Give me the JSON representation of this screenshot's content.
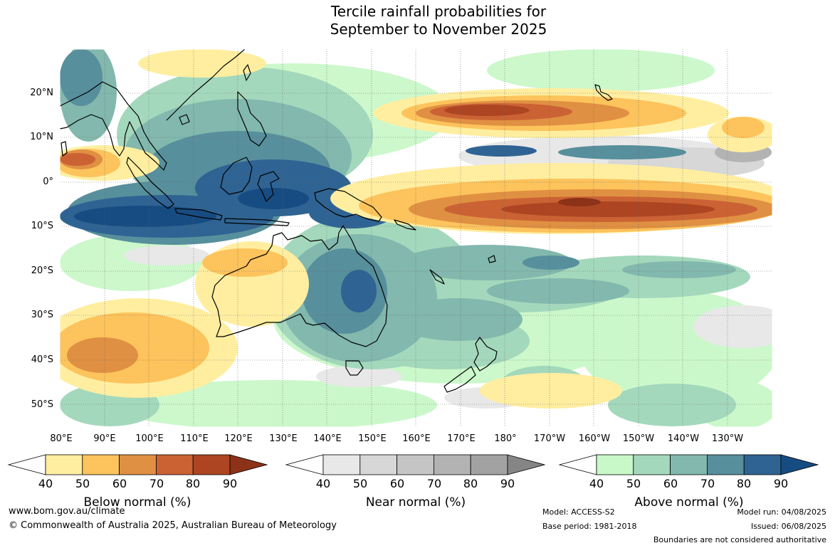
{
  "title": {
    "line1": "Tercile rainfall probabilities for",
    "line2": "September to November 2025"
  },
  "map": {
    "lat_labels": [
      "20°N",
      "10°N",
      "0°",
      "10°S",
      "20°S",
      "30°S",
      "40°S",
      "50°S"
    ],
    "lon_labels": [
      "80°E",
      "90°E",
      "100°E",
      "110°E",
      "120°E",
      "130°E",
      "140°E",
      "150°E",
      "160°E",
      "170°E",
      "180°",
      "170°W",
      "160°W",
      "150°W",
      "140°W",
      "130°W"
    ]
  },
  "legends": [
    {
      "title": "Below normal (%)",
      "ticks": [
        "40",
        "50",
        "60",
        "70",
        "80",
        "90"
      ],
      "colors": [
        "#ffeea0",
        "#fdc35c",
        "#e09042",
        "#cb6234",
        "#ad4523",
        "#8c3218"
      ]
    },
    {
      "title": "Near normal (%)",
      "ticks": [
        "40",
        "50",
        "60",
        "70",
        "80",
        "90"
      ],
      "colors": [
        "#e8e8e8",
        "#d7d7d7",
        "#c5c5c5",
        "#b3b3b3",
        "#a2a2a2",
        "#858585"
      ]
    },
    {
      "title": "Above normal (%)",
      "ticks": [
        "40",
        "50",
        "60",
        "70",
        "80",
        "90"
      ],
      "colors": [
        "#c9f8c8",
        "#a4d8bc",
        "#82b8ad",
        "#578f9c",
        "#2f6393",
        "#174c82"
      ]
    }
  ],
  "footer": {
    "url": "www.bom.gov.au/climate",
    "copyright": "© Commonwealth of Australia 2025, Australian Bureau of Meteorology",
    "model": "Model: ACCESS-S2",
    "base_period": "Base period: 1981-2018",
    "model_run": "Model run: 04/08/2025",
    "issued": "Issued: 06/08/2025",
    "disclaimer": "Boundaries are not considered authoritative"
  }
}
